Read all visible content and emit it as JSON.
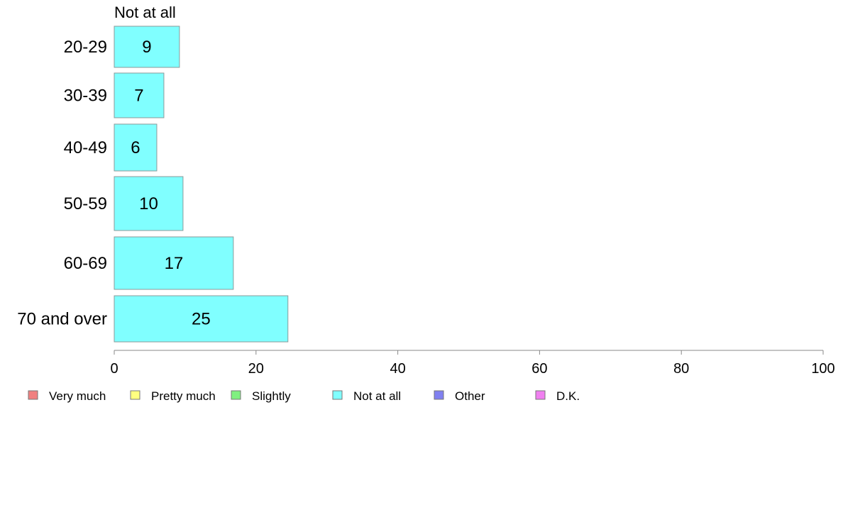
{
  "chart_data": {
    "type": "bar",
    "orientation": "horizontal",
    "stacked": true,
    "column_header": "Not at all",
    "categories": [
      "20-29",
      "30-39",
      "40-49",
      "50-59",
      "60-69",
      "70 and over"
    ],
    "series": [
      {
        "name": "Very much",
        "color": "#f08080",
        "values": [
          null,
          null,
          null,
          null,
          null,
          null
        ]
      },
      {
        "name": "Pretty much",
        "color": "#ffff80",
        "values": [
          null,
          null,
          null,
          null,
          null,
          null
        ]
      },
      {
        "name": "Slightly",
        "color": "#80f080",
        "values": [
          null,
          null,
          null,
          null,
          null,
          null
        ]
      },
      {
        "name": "Not at all",
        "color": "#80ffff",
        "values": [
          9.2,
          7,
          6,
          9.7,
          16.8,
          24.5
        ]
      },
      {
        "name": "Other",
        "color": "#8080f0",
        "values": [
          null,
          null,
          null,
          null,
          null,
          null
        ]
      },
      {
        "name": "D.K.",
        "color": "#f080f0",
        "values": [
          null,
          null,
          null,
          null,
          null,
          null
        ]
      }
    ],
    "data_labels": [
      "9",
      "7",
      "6",
      "10",
      "17",
      "25"
    ],
    "xlim": [
      0,
      100
    ],
    "xticks": [
      0,
      20,
      40,
      60,
      80,
      100
    ],
    "grid": false,
    "legend_position": "bottom"
  }
}
